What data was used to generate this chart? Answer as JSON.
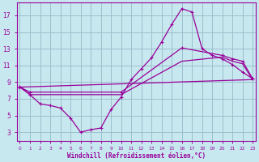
{
  "background_color": "#c8e8f0",
  "grid_color": "#9bbfcc",
  "line_color": "#990099",
  "xlim_min": -0.3,
  "xlim_max": 23.3,
  "ylim_min": 2.0,
  "ylim_max": 18.5,
  "xticks": [
    0,
    1,
    2,
    3,
    4,
    5,
    6,
    7,
    8,
    9,
    10,
    11,
    12,
    13,
    14,
    15,
    16,
    17,
    18,
    19,
    20,
    21,
    22,
    23
  ],
  "yticks": [
    3,
    5,
    7,
    9,
    11,
    13,
    15,
    17
  ],
  "xlabel": "Windchill (Refroidissement éolien,°C)",
  "curve_main_x": [
    0,
    1,
    2,
    3,
    4,
    5,
    6,
    7,
    8,
    9,
    10,
    11,
    12,
    13,
    14,
    15,
    16,
    17,
    18,
    19,
    20,
    21,
    22,
    23
  ],
  "curve_main_y": [
    8.5,
    7.5,
    6.4,
    6.2,
    5.9,
    4.7,
    3.0,
    3.3,
    3.5,
    5.7,
    7.2,
    9.3,
    10.6,
    11.9,
    13.8,
    15.9,
    17.8,
    17.4,
    13.0,
    12.2,
    11.8,
    11.1,
    10.2,
    9.4
  ],
  "curve_line1_x": [
    0,
    23
  ],
  "curve_line1_y": [
    8.4,
    9.3
  ],
  "curve_smooth1_x": [
    0,
    1,
    10,
    16,
    20,
    21,
    22,
    23
  ],
  "curve_smooth1_y": [
    8.4,
    7.8,
    7.8,
    13.1,
    12.2,
    11.8,
    11.5,
    9.4
  ],
  "curve_smooth2_x": [
    0,
    1,
    10,
    16,
    20,
    21,
    22,
    23
  ],
  "curve_smooth2_y": [
    8.4,
    7.5,
    7.5,
    11.5,
    12.0,
    11.5,
    11.2,
    9.3
  ]
}
